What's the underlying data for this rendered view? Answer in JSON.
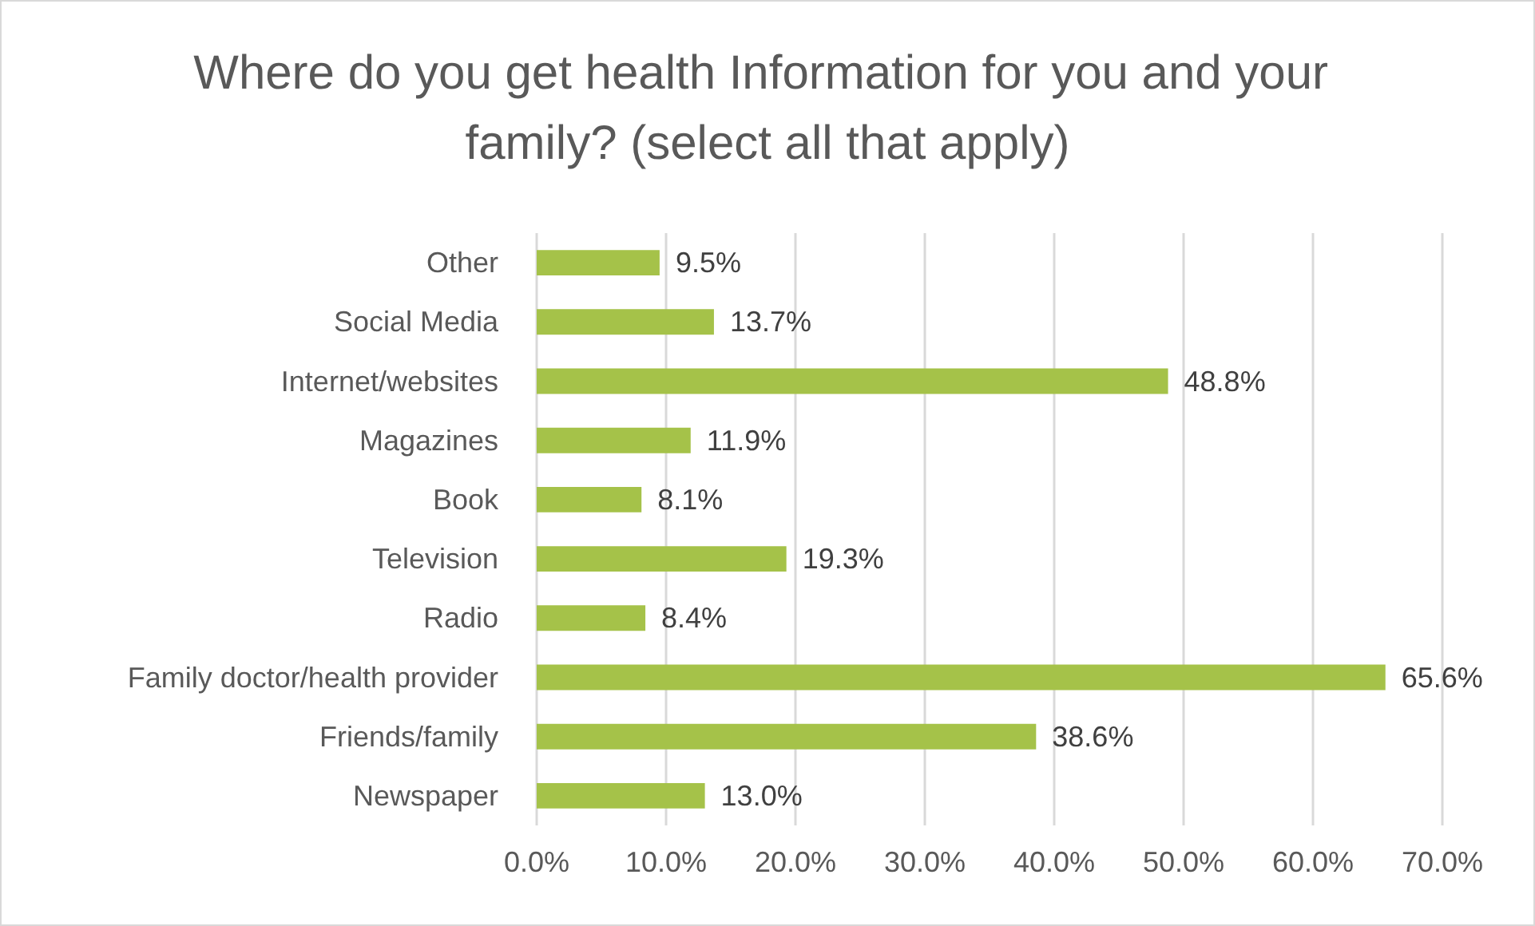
{
  "chart_data": {
    "type": "bar",
    "orientation": "horizontal",
    "title": "Where do you get health Information for you and your family? (select all that apply)",
    "categories": [
      "Other",
      "Social Media",
      "Internet/websites",
      "Magazines",
      "Book",
      "Television",
      "Radio",
      "Family doctor/health provider",
      "Friends/family",
      "Newspaper"
    ],
    "series": [
      {
        "color": "#a5c249",
        "values": [
          9.5,
          13.7,
          48.8,
          11.9,
          8.1,
          19.3,
          8.4,
          65.6,
          38.6,
          13.0
        ],
        "value_labels": [
          "9.5%",
          "13.7%",
          "48.8%",
          "11.9%",
          "8.1%",
          "19.3%",
          "8.4%",
          "65.6%",
          "38.6%",
          "13.0%"
        ]
      }
    ],
    "xlim": [
      0,
      70
    ],
    "xticks": [
      {
        "value": 0,
        "label": "0.0%"
      },
      {
        "value": 10,
        "label": "10.0%"
      },
      {
        "value": 20,
        "label": "20.0%"
      },
      {
        "value": 30,
        "label": "30.0%"
      },
      {
        "value": 40,
        "label": "40.0%"
      },
      {
        "value": 50,
        "label": "50.0%"
      },
      {
        "value": 60,
        "label": "60.0%"
      },
      {
        "value": 70,
        "label": "70.0%"
      }
    ],
    "grid": "x"
  }
}
